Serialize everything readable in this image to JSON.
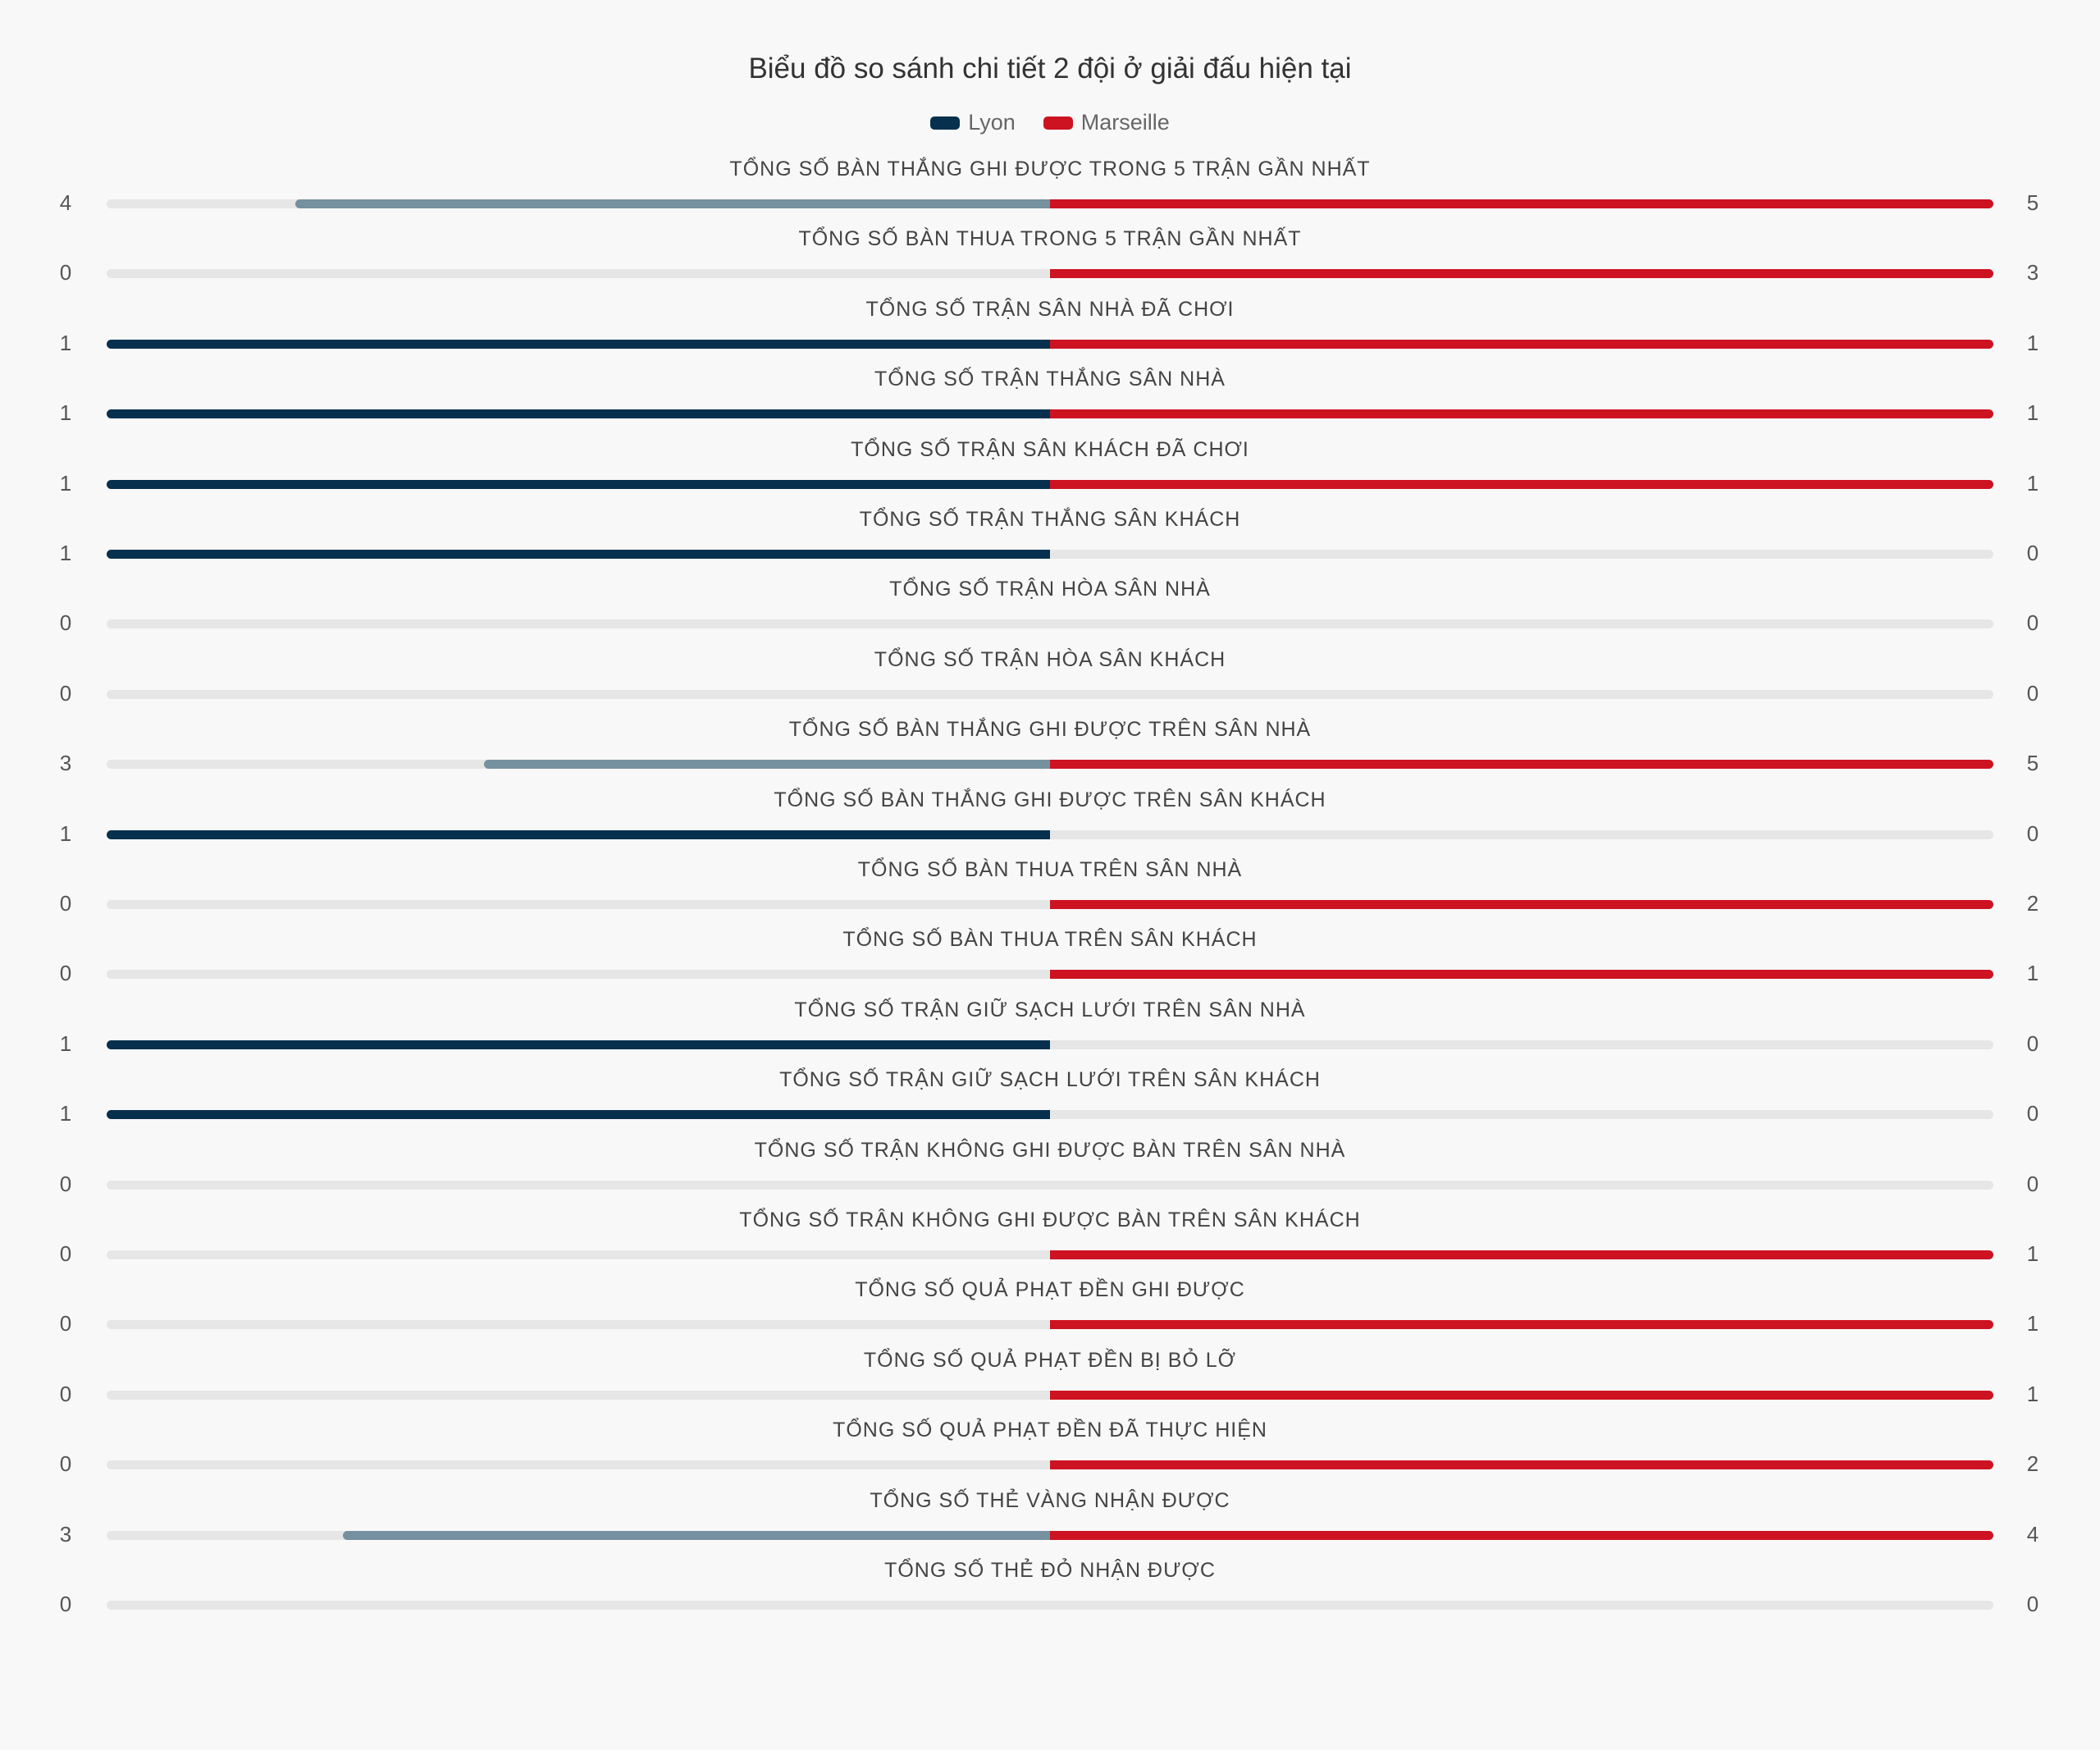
{
  "chart_data": {
    "type": "bar",
    "title": "Biểu đồ so sánh chi tiết 2 đội ở giải đấu hiện tại",
    "series": [
      {
        "name": "Lyon",
        "color": "#07304e",
        "light_color": "#75909f"
      },
      {
        "name": "Marseille",
        "color": "#cd1322"
      }
    ],
    "categories": [
      "TỔNG SỐ BÀN THẮNG GHI ĐƯỢC TRONG 5 TRẬN GẦN NHẤT",
      "TỔNG SỐ BÀN THUA TRONG 5 TRẬN GẦN NHẤT",
      "TỔNG SỐ TRẬN SÂN NHÀ ĐÃ CHƠI",
      "TỔNG SỐ TRẬN THẮNG SÂN NHÀ",
      "TỔNG SỐ TRẬN SÂN KHÁCH ĐÃ CHƠI",
      "TỔNG SỐ TRẬN THẮNG SÂN KHÁCH",
      "TỔNG SỐ TRẬN HÒA SÂN NHÀ",
      "TỔNG SỐ TRẬN HÒA SÂN KHÁCH",
      "TỔNG SỐ BÀN THẮNG GHI ĐƯỢC TRÊN SÂN NHÀ",
      "TỔNG SỐ BÀN THẮNG GHI ĐƯỢC TRÊN SÂN KHÁCH",
      "TỔNG SỐ BÀN THUA TRÊN SÂN NHÀ",
      "TỔNG SỐ BÀN THUA TRÊN SÂN KHÁCH",
      "TỔNG SỐ TRẬN GIỮ SẠCH LƯỚI TRÊN SÂN NHÀ",
      "TỔNG SỐ TRẬN GIỮ SẠCH LƯỚI TRÊN SÂN KHÁCH",
      "TỔNG SỐ TRẬN KHÔNG GHI ĐƯỢC BÀN TRÊN SÂN NHÀ",
      "TỔNG SỐ TRẬN KHÔNG GHI ĐƯỢC BÀN TRÊN SÂN KHÁCH",
      "TỔNG SỐ QUẢ PHẠT ĐỀN GHI ĐƯỢC",
      "TỔNG SỐ QUẢ PHẠT ĐỀN BỊ BỎ LỠ",
      "TỔNG SỐ QUẢ PHẠT ĐỀN ĐÃ THỰC HIỆN",
      "TỔNG SỐ THẺ VÀNG NHẬN ĐƯỢC",
      "TỔNG SỐ THẺ ĐỎ NHẬN ĐƯỢC"
    ],
    "home_values": [
      4,
      0,
      1,
      1,
      1,
      1,
      0,
      0,
      3,
      1,
      0,
      0,
      1,
      1,
      0,
      0,
      0,
      0,
      0,
      3,
      0
    ],
    "away_values": [
      5,
      3,
      1,
      1,
      1,
      0,
      0,
      0,
      5,
      0,
      2,
      1,
      0,
      0,
      0,
      1,
      1,
      1,
      2,
      4,
      0
    ],
    "legend_position": "top-center"
  },
  "colors": {
    "track": "#e6e6e6"
  }
}
